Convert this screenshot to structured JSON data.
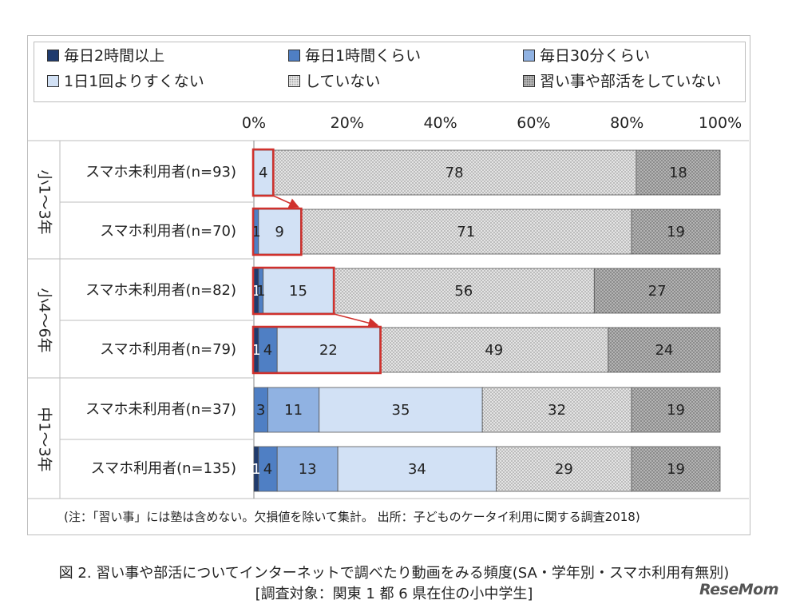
{
  "legend": [
    {
      "label": "毎日2時間以上",
      "color": "#1f3b6e",
      "pattern": "solid"
    },
    {
      "label": "毎日1時間くらい",
      "color": "#4f7fc4",
      "pattern": "solid"
    },
    {
      "label": "毎日30分くらい",
      "color": "#90b2e2",
      "pattern": "solid"
    },
    {
      "label": "1日1回よりすくない",
      "color": "#d2e1f5",
      "pattern": "solid"
    },
    {
      "label": "していない",
      "color": "#d9d9d9",
      "pattern": "dots-light"
    },
    {
      "label": "習い事や部活をしていない",
      "color": "#a8a8a8",
      "pattern": "dots-dark"
    }
  ],
  "chart_data": {
    "type": "bar",
    "orientation": "horizontal",
    "stacked": true,
    "x_ticks": [
      "0%",
      "20%",
      "40%",
      "60%",
      "80%",
      "100%"
    ],
    "xlim": [
      0,
      100
    ],
    "groups": [
      {
        "label": "小1～3年",
        "rows": [
          0,
          1
        ]
      },
      {
        "label": "小4～6年",
        "rows": [
          2,
          3
        ]
      },
      {
        "label": "中1～3年",
        "rows": [
          4,
          5
        ]
      }
    ],
    "categories": [
      "スマホ未利用者(n=93)",
      "スマホ利用者(n=70)",
      "スマホ未利用者(n=82)",
      "スマホ利用者(n=79)",
      "スマホ未利用者(n=37)",
      "スマホ利用者(n=135)"
    ],
    "series": [
      {
        "name": "毎日2時間以上",
        "values": [
          0,
          0,
          1,
          1,
          0,
          1
        ],
        "labels": [
          "",
          "",
          "1",
          "1",
          "",
          "1"
        ]
      },
      {
        "name": "毎日1時間くらい",
        "values": [
          0,
          1,
          1,
          4,
          3,
          4
        ],
        "labels": [
          "",
          "1",
          "1",
          "4",
          "3",
          "4"
        ]
      },
      {
        "name": "毎日30分くらい",
        "values": [
          0,
          0,
          0,
          0,
          11,
          13
        ],
        "labels": [
          "",
          "",
          "",
          "",
          "11",
          "13"
        ]
      },
      {
        "name": "1日1回よりすくない",
        "values": [
          4,
          9,
          15,
          22,
          35,
          34
        ],
        "labels": [
          "4",
          "9",
          "15",
          "22",
          "35",
          "34"
        ]
      },
      {
        "name": "していない",
        "values": [
          78,
          71,
          56,
          49,
          32,
          29
        ],
        "labels": [
          "78",
          "71",
          "56",
          "49",
          "32",
          "29"
        ]
      },
      {
        "name": "習い事や部活をしていない",
        "values": [
          18,
          19,
          27,
          24,
          19,
          19
        ],
        "labels": [
          "18",
          "19",
          "27",
          "24",
          "19",
          "19"
        ]
      }
    ],
    "highlights": [
      {
        "row": 0,
        "series": [
          3
        ]
      },
      {
        "row": 1,
        "series": [
          0,
          1,
          2,
          3
        ]
      },
      {
        "row": 2,
        "series": [
          0,
          1,
          2,
          3
        ]
      },
      {
        "row": 3,
        "series": [
          0,
          1,
          2,
          3
        ]
      }
    ],
    "arrows": [
      [
        0,
        1
      ],
      [
        2,
        3
      ]
    ]
  },
  "note": "(注：「習い事」には塾は含めない。欠損値を除いて集計。 出所：子どものケータイ利用に関する調査2018)",
  "caption_line1": "図 2.  習い事や部活についてインターネットで調べたり動画をみる頻度(SA・学年別・スマホ利用有無別)",
  "caption_line2": "[調査対象：関東 1 都 6 県在住の小中学生]",
  "logo": "ReseMom"
}
